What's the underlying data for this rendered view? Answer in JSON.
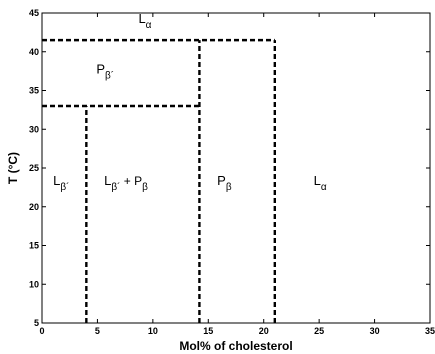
{
  "chart_data": {
    "type": "line",
    "title": "",
    "xlabel": "Mol% of cholesterol",
    "ylabel": "T (°C)",
    "xlim": [
      0,
      35
    ],
    "ylim": [
      5,
      45
    ],
    "xticks": [
      0,
      5,
      10,
      15,
      20,
      25,
      30,
      35
    ],
    "yticks": [
      5,
      10,
      15,
      20,
      25,
      30,
      35,
      40,
      45
    ],
    "grid": false,
    "phase_boundaries": [
      {
        "points": [
          [
            0,
            41.5
          ],
          [
            21,
            41.5
          ]
        ]
      },
      {
        "points": [
          [
            0,
            33
          ],
          [
            14.2,
            33
          ]
        ]
      },
      {
        "points": [
          [
            4,
            5
          ],
          [
            4,
            33
          ]
        ]
      },
      {
        "points": [
          [
            14.2,
            5
          ],
          [
            14.2,
            41.5
          ]
        ]
      },
      {
        "points": [
          [
            21,
            5
          ],
          [
            21,
            41.5
          ]
        ]
      }
    ],
    "region_labels": [
      {
        "main": "L",
        "sub": "α",
        "x": 8.7,
        "y": 43.7
      },
      {
        "main": "P",
        "sub": "β´",
        "x": 4.9,
        "y": 37.2
      },
      {
        "main": "L",
        "sub": "β´",
        "x": 1.0,
        "y": 22.8
      },
      {
        "main": "L",
        "sub": "β´",
        "sub2": " + P",
        "sub3": "β",
        "x": 5.6,
        "y": 22.8
      },
      {
        "main": "P",
        "sub": "β",
        "x": 15.8,
        "y": 22.8
      },
      {
        "main": "L",
        "sub": "α",
        "x": 24.5,
        "y": 22.8
      }
    ]
  }
}
